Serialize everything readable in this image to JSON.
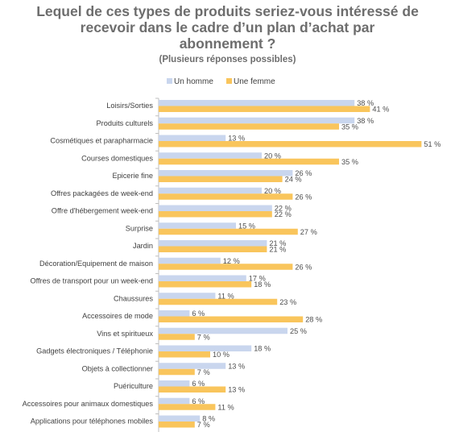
{
  "title_lines": [
    "Lequel de ces types de produits seriez-vous intéressé de",
    "recevoir dans le cadre d’un plan d’achat par",
    "abonnement ?"
  ],
  "subtitle": "(Plusieurs réponses possibles)",
  "colors": {
    "homme": "#c9d6ee",
    "femme": "#f9c55c",
    "label": "#3f3f3f",
    "value": "#4d4d4d",
    "axis": "#bfbfbf"
  },
  "chart_data": {
    "type": "bar",
    "orientation": "horizontal",
    "title": "Lequel de ces types de produits seriez-vous intéressé de recevoir dans le cadre d’un plan d’achat par abonnement ?",
    "subtitle": "(Plusieurs réponses possibles)",
    "legend_position": "top",
    "xlim": [
      0,
      52
    ],
    "grid": false,
    "categories": [
      "Loisirs/Sorties",
      "Produits culturels",
      "Cosmétiques et parapharmacie",
      "Courses domestiques",
      "Epicerie fine",
      "Offres packagées de week-end",
      "Offre d'hébergement week-end",
      "Surprise",
      "Jardin",
      "Décoration/Equipement de maison",
      "Offres de transport pour un week-end",
      "Chaussures",
      "Accessoires de mode",
      "Vins et spiritueux",
      "Gadgets électroniques / Téléphonie",
      "Objets à collectionner",
      "Puériculture",
      "Accessoires pour animaux domestiques",
      "Applications pour téléphones mobiles"
    ],
    "series": [
      {
        "name": "Un homme",
        "values": [
          38,
          38,
          13,
          20,
          26,
          20,
          22,
          15,
          21,
          12,
          17,
          11,
          6,
          25,
          18,
          13,
          6,
          6,
          8
        ]
      },
      {
        "name": "Une femme",
        "values": [
          41,
          35,
          51,
          35,
          24,
          26,
          22,
          27,
          21,
          26,
          18,
          23,
          28,
          7,
          10,
          7,
          13,
          11,
          7
        ]
      }
    ],
    "value_suffix": " %"
  }
}
